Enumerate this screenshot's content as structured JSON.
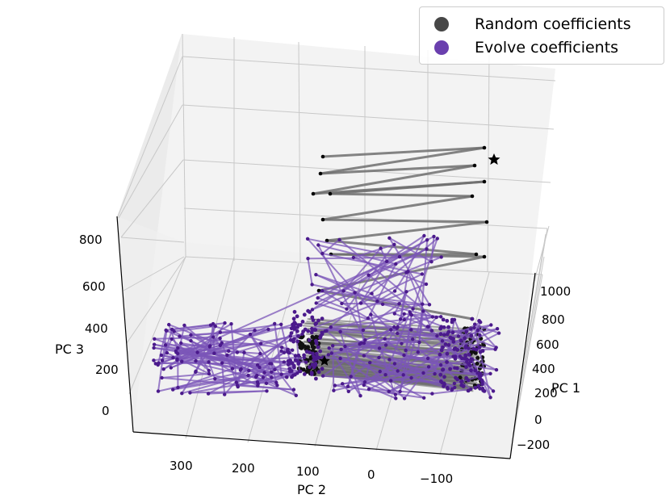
{
  "chart_data": {
    "type": "scatter",
    "projection": "3d",
    "xlabel": "PC 1",
    "ylabel": "PC 2",
    "zlabel": "PC 3",
    "x_ticks": [
      "−200",
      "0",
      "200",
      "400",
      "600",
      "800",
      "1000"
    ],
    "y_ticks": [
      "300",
      "200",
      "100",
      "0",
      "−100"
    ],
    "z_ticks": [
      "0",
      "200",
      "400",
      "600",
      "800"
    ],
    "xlim": [
      -250,
      1100
    ],
    "ylim": [
      -150,
      380
    ],
    "zlim": [
      -100,
      900
    ],
    "grid": true,
    "legend_position": "top-right",
    "series": [
      {
        "name": "Random coefficients",
        "color": "#3f3f3f",
        "line_color": "#6e6e6e",
        "marker": "circle"
      },
      {
        "name": "Evolve coefficients",
        "color": "#4b1a8c",
        "line_color": "#7b55b8",
        "marker": "circle"
      }
    ]
  },
  "legend": {
    "items": [
      {
        "label": "Random coefficients",
        "color": "#474747"
      },
      {
        "label": "Evolve coefficients",
        "color": "#6a3fae"
      }
    ]
  }
}
